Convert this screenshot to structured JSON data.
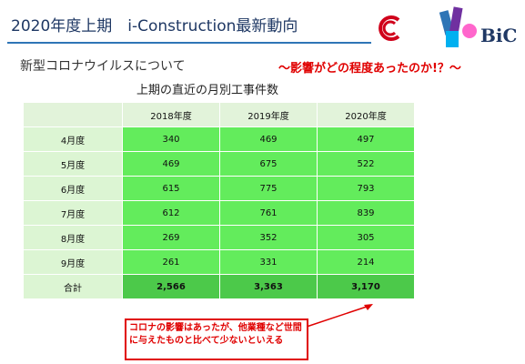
{
  "header": {
    "title": "2020年度上期　i-Construction最新動向",
    "logo": "BiC"
  },
  "subtitle": "新型コロナウイルスについて",
  "highlight": "～影響がどの程度あったのか!？～",
  "table": {
    "title": "上期の直近の月別工事件数",
    "columns": [
      "2018年度",
      "2019年度",
      "2020年度"
    ],
    "rows": [
      [
        "4月度",
        "340",
        "469",
        "497"
      ],
      [
        "5月度",
        "469",
        "675",
        "522"
      ],
      [
        "6月度",
        "615",
        "775",
        "793"
      ],
      [
        "7月度",
        "612",
        "761",
        "839"
      ],
      [
        "8月度",
        "269",
        "352",
        "305"
      ],
      [
        "9月度",
        "261",
        "331",
        "214"
      ]
    ],
    "total": [
      "合計",
      "2,566",
      "3,363",
      "3,170"
    ]
  },
  "callout": "コロナの影響はあったが、他業種など世間に与えたものと比べて少ないといえる"
}
